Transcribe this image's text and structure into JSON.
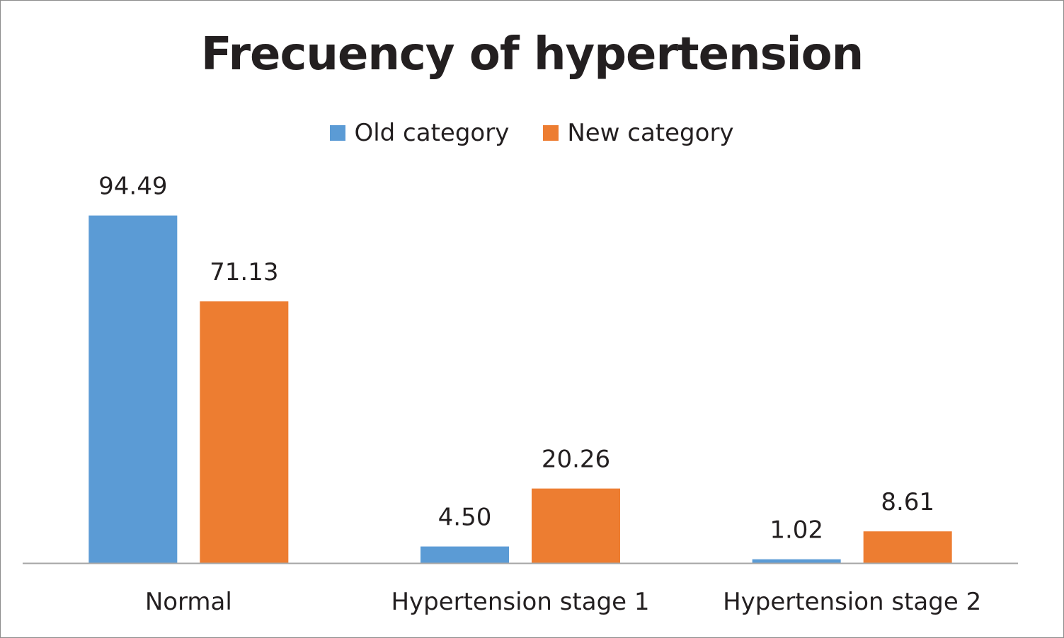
{
  "chart_data": {
    "type": "bar",
    "title": "Frecuency of hypertension",
    "categories": [
      "Normal",
      "Hypertension stage 1",
      "Hypertension stage 2"
    ],
    "series": [
      {
        "name": "Old category",
        "values": [
          94.49,
          4.5,
          1.02
        ],
        "labels": [
          "94.49",
          "4.50",
          "1.02"
        ],
        "color": "#5b9bd5"
      },
      {
        "name": "New category",
        "values": [
          71.13,
          20.26,
          8.61
        ],
        "labels": [
          "71.13",
          "20.26",
          "8.61"
        ],
        "color": "#ed7d31"
      }
    ],
    "xlabel": "",
    "ylabel": "",
    "ylim": [
      0,
      100
    ],
    "grid": false,
    "legend_position": "top"
  }
}
